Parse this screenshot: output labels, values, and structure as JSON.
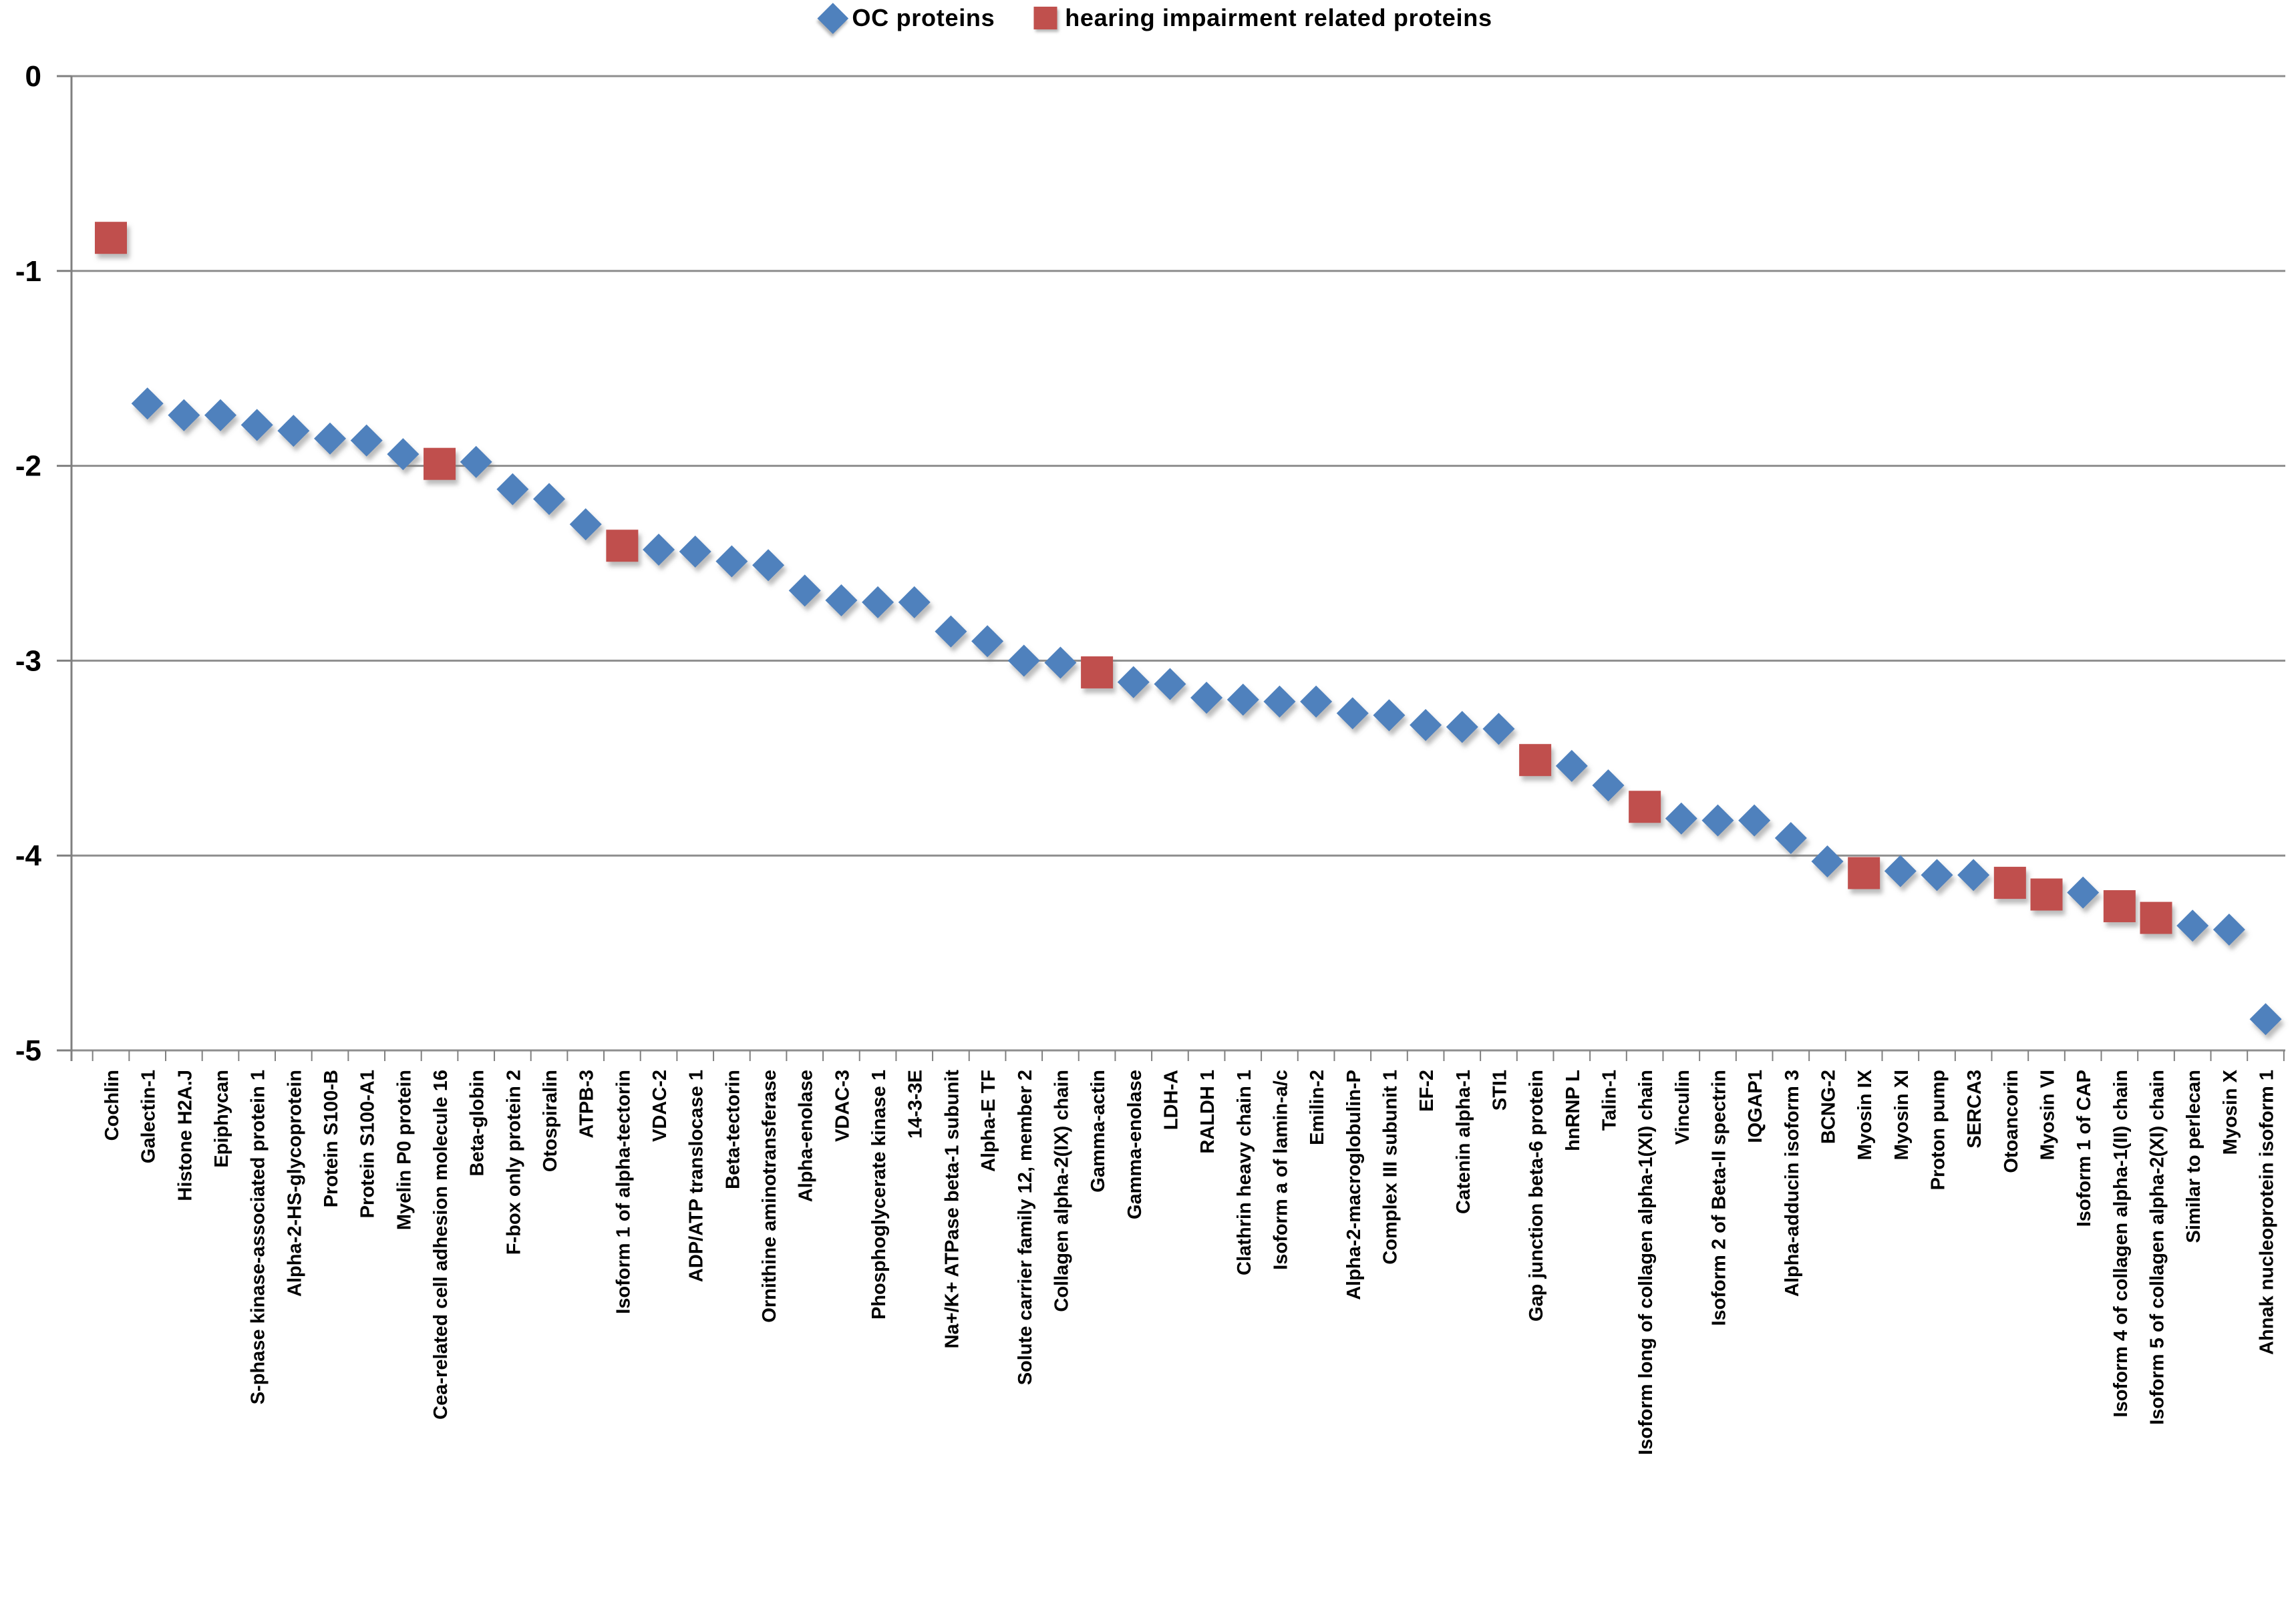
{
  "legend": {
    "items": [
      {
        "label": "OC proteins",
        "marker": "diamond",
        "color": "#4F81BD"
      },
      {
        "label": "hearing impairment related proteins",
        "marker": "square",
        "color": "#C0504D"
      }
    ]
  },
  "colors": {
    "oc_series": "#4F81BD",
    "hi_series": "#C0504D",
    "gridline": "#8E8E8E",
    "axis": "#7F7F7F",
    "text": "#000000"
  },
  "chart_data": {
    "type": "scatter",
    "title": "",
    "xlabel": "",
    "ylabel": "",
    "ylim": [
      -5,
      0
    ],
    "yticks": [
      "0",
      "-1",
      "-2",
      "-3",
      "-4",
      "-5"
    ],
    "grid": true,
    "legend_position": "top-center",
    "x_label_rotation": -90,
    "series_names": [
      "OC proteins",
      "hearing impairment related proteins"
    ],
    "points": [
      {
        "label": "Cochlin",
        "value": -0.83,
        "series": "hi"
      },
      {
        "label": "Galectin-1",
        "value": -1.68,
        "series": "oc"
      },
      {
        "label": "Histone H2A.J",
        "value": -1.74,
        "series": "oc"
      },
      {
        "label": "Epiphycan",
        "value": -1.74,
        "series": "oc"
      },
      {
        "label": "S-phase kinase-associated protein 1",
        "value": -1.79,
        "series": "oc"
      },
      {
        "label": "Alpha-2-HS-glycoprotein",
        "value": -1.82,
        "series": "oc"
      },
      {
        "label": "Protein S100-B",
        "value": -1.86,
        "series": "oc"
      },
      {
        "label": "Protein S100-A1",
        "value": -1.87,
        "series": "oc"
      },
      {
        "label": "Myelin P0 protein",
        "value": -1.94,
        "series": "oc"
      },
      {
        "label": "Cea-related cell adhesion molecule 16",
        "value": -1.99,
        "series": "hi"
      },
      {
        "label": "Beta-globin",
        "value": -1.98,
        "series": "oc"
      },
      {
        "label": "F-box only protein 2",
        "value": -2.12,
        "series": "oc"
      },
      {
        "label": "Otospiralin",
        "value": -2.17,
        "series": "oc"
      },
      {
        "label": "ATPB-3",
        "value": -2.3,
        "series": "oc"
      },
      {
        "label": "Isoform 1 of alpha-tectorin",
        "value": -2.41,
        "series": "hi"
      },
      {
        "label": "VDAC-2",
        "value": -2.43,
        "series": "oc"
      },
      {
        "label": "ADP/ATP translocase 1",
        "value": -2.44,
        "series": "oc"
      },
      {
        "label": "Beta-tectorin",
        "value": -2.49,
        "series": "oc"
      },
      {
        "label": "Ornithine aminotransferase",
        "value": -2.51,
        "series": "oc"
      },
      {
        "label": "Alpha-enolase",
        "value": -2.64,
        "series": "oc"
      },
      {
        "label": "VDAC-3",
        "value": -2.69,
        "series": "oc"
      },
      {
        "label": "Phosphoglycerate kinase 1",
        "value": -2.7,
        "series": "oc"
      },
      {
        "label": "14-3-3E",
        "value": -2.7,
        "series": "oc"
      },
      {
        "label": "Na+/K+ ATPase beta-1 subunit",
        "value": -2.85,
        "series": "oc"
      },
      {
        "label": "Alpha-E TF",
        "value": -2.9,
        "series": "oc"
      },
      {
        "label": "Solute carrier family 12, member 2",
        "value": -3.0,
        "series": "oc"
      },
      {
        "label": "Collagen alpha-2(IX) chain",
        "value": -3.01,
        "series": "oc"
      },
      {
        "label": "Gamma-actin",
        "value": -3.06,
        "series": "hi"
      },
      {
        "label": "Gamma-enolase",
        "value": -3.11,
        "series": "oc"
      },
      {
        "label": "LDH-A",
        "value": -3.12,
        "series": "oc"
      },
      {
        "label": "RALDH 1",
        "value": -3.19,
        "series": "oc"
      },
      {
        "label": "Clathrin heavy chain 1",
        "value": -3.2,
        "series": "oc"
      },
      {
        "label": "Isoform a of lamin-a/c",
        "value": -3.21,
        "series": "oc"
      },
      {
        "label": "Emilin-2",
        "value": -3.21,
        "series": "oc"
      },
      {
        "label": "Alpha-2-macroglobulin-P",
        "value": -3.27,
        "series": "oc"
      },
      {
        "label": "Complex III subunit 1",
        "value": -3.28,
        "series": "oc"
      },
      {
        "label": "EF-2",
        "value": -3.33,
        "series": "oc"
      },
      {
        "label": "Catenin alpha-1",
        "value": -3.34,
        "series": "oc"
      },
      {
        "label": "STI1",
        "value": -3.35,
        "series": "oc"
      },
      {
        "label": "Gap junction beta-6 protein",
        "value": -3.51,
        "series": "hi"
      },
      {
        "label": "hnRNP L",
        "value": -3.54,
        "series": "oc"
      },
      {
        "label": "Talin-1",
        "value": -3.64,
        "series": "oc"
      },
      {
        "label": "Isoform long of collagen alpha-1(XI) chain",
        "value": -3.75,
        "series": "hi"
      },
      {
        "label": "Vinculin",
        "value": -3.81,
        "series": "oc"
      },
      {
        "label": "Isoform 2 of Beta-II spectrin",
        "value": -3.82,
        "series": "oc"
      },
      {
        "label": "IQGAP1",
        "value": -3.82,
        "series": "oc"
      },
      {
        "label": "Alpha-adducin isoform 3",
        "value": -3.91,
        "series": "oc"
      },
      {
        "label": "BCNG-2",
        "value": -4.03,
        "series": "oc"
      },
      {
        "label": "Myosin IX",
        "value": -4.09,
        "series": "hi"
      },
      {
        "label": "Myosin XI",
        "value": -4.08,
        "series": "oc"
      },
      {
        "label": "Proton pump",
        "value": -4.1,
        "series": "oc"
      },
      {
        "label": "SERCA3",
        "value": -4.1,
        "series": "oc"
      },
      {
        "label": "Otoancorin",
        "value": -4.14,
        "series": "hi"
      },
      {
        "label": "Myosin VI",
        "value": -4.2,
        "series": "hi"
      },
      {
        "label": "Isoform 1 of CAP",
        "value": -4.19,
        "series": "oc"
      },
      {
        "label": "Isoform 4 of collagen alpha-1(II) chain",
        "value": -4.26,
        "series": "hi"
      },
      {
        "label": "Isoform 5 of collagen alpha-2(XI) chain",
        "value": -4.32,
        "series": "hi"
      },
      {
        "label": "Similar to perlecan",
        "value": -4.36,
        "series": "oc"
      },
      {
        "label": "Myosin X",
        "value": -4.38,
        "series": "oc"
      },
      {
        "label": "Ahnak nucleoprotein isoform 1",
        "value": -4.84,
        "series": "oc"
      }
    ]
  }
}
